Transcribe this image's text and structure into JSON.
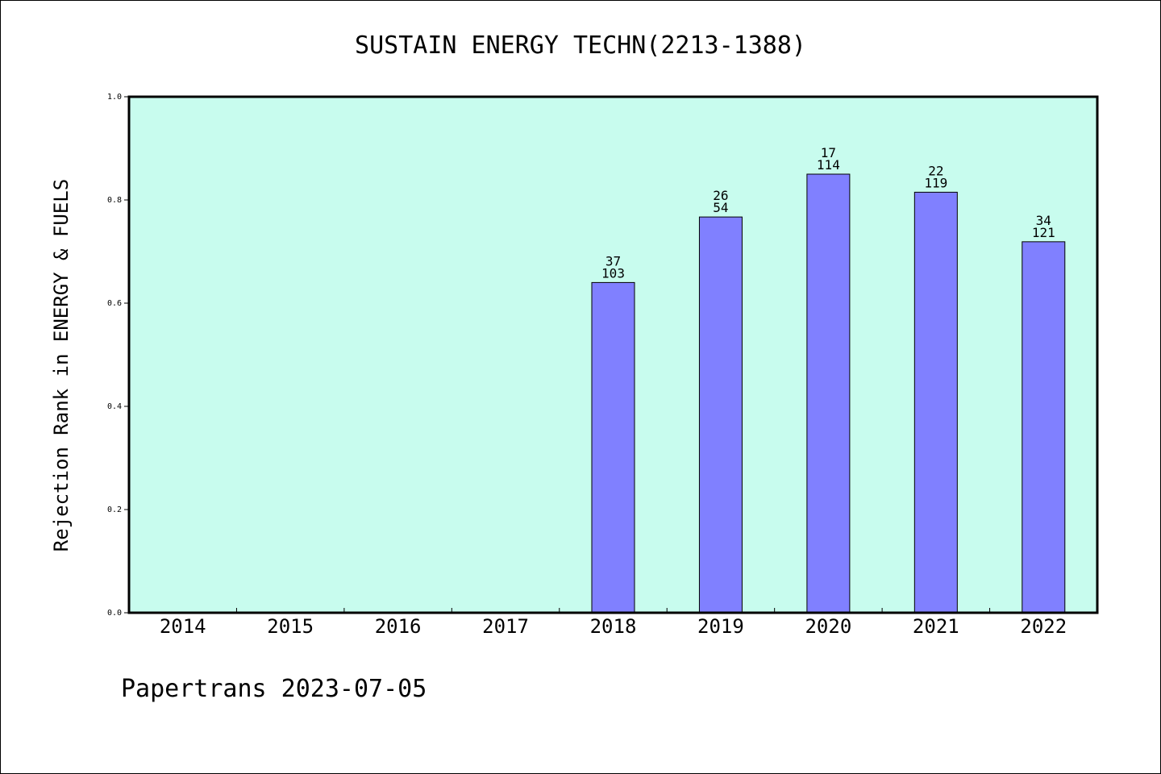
{
  "chart_data": {
    "type": "bar",
    "title": "SUSTAIN ENERGY TECHN(2213-1388)",
    "ylabel": "Rejection Rank in ENERGY & FUELS",
    "xlabel": "",
    "ylim": [
      0,
      1.0
    ],
    "yticks": [
      "0.0",
      "0.2",
      "0.4",
      "0.6",
      "0.8",
      "1.0"
    ],
    "categories": [
      "2014",
      "2015",
      "2016",
      "2017",
      "2018",
      "2019",
      "2020",
      "2021",
      "2022"
    ],
    "values": [
      null,
      null,
      null,
      null,
      0.64,
      0.767,
      0.85,
      0.815,
      0.719
    ],
    "bar_labels": [
      null,
      null,
      null,
      null,
      {
        "top": "37",
        "bottom": "103"
      },
      {
        "top": "26",
        "bottom": "54"
      },
      {
        "top": "17",
        "bottom": "114"
      },
      {
        "top": "22",
        "bottom": "119"
      },
      {
        "top": "34",
        "bottom": "121"
      }
    ],
    "plot_background": "#c8fcee",
    "bar_color": "#8080ff",
    "grid": false,
    "legend": "none"
  },
  "footer": "Papertrans 2023-07-05"
}
